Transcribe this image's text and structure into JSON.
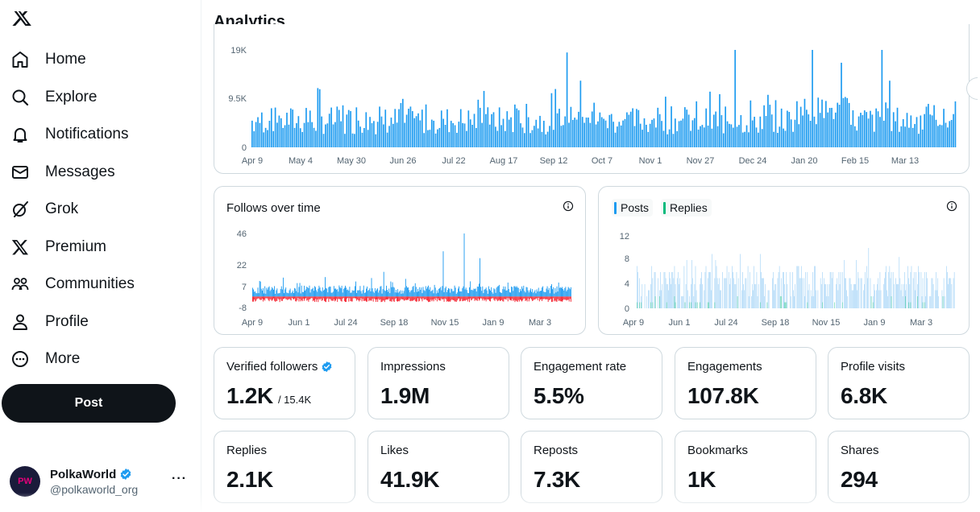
{
  "colors": {
    "accent": "#1d9bf0",
    "negative": "#f4212e",
    "replies": "#00ba7c",
    "posts_light": "#9cd0f6"
  },
  "sidebar": {
    "items": [
      {
        "label": "Home",
        "icon": "home-icon"
      },
      {
        "label": "Explore",
        "icon": "search-icon"
      },
      {
        "label": "Notifications",
        "icon": "bell-icon"
      },
      {
        "label": "Messages",
        "icon": "mail-icon"
      },
      {
        "label": "Grok",
        "icon": "grok-icon"
      },
      {
        "label": "Premium",
        "icon": "x-icon"
      },
      {
        "label": "Communities",
        "icon": "communities-icon"
      },
      {
        "label": "Profile",
        "icon": "person-icon"
      },
      {
        "label": "More",
        "icon": "more-circle-icon"
      }
    ],
    "post_label": "Post",
    "account": {
      "name": "PolkaWorld",
      "handle": "@polkaworld_org",
      "avatar_text": "PW"
    }
  },
  "page": {
    "title": "Analytics"
  },
  "chart_data": [
    {
      "id": "impressions",
      "type": "bar",
      "title": "",
      "yticks": [
        "19K",
        "9.5K",
        "0"
      ],
      "ylim": [
        0,
        19000
      ],
      "x_labels": [
        "Apr 9",
        "May 4",
        "May 30",
        "Jun 26",
        "Jul 22",
        "Aug 17",
        "Sep 12",
        "Oct 7",
        "Nov 1",
        "Nov 27",
        "Dec 24",
        "Jan 20",
        "Feb 15",
        "Mar 13"
      ],
      "bar_count": 365,
      "values": [],
      "note": "daily impressions, mostly 3K–9K with spikes up to ~19K around Sep 22 and Jan"
    },
    {
      "id": "follows",
      "type": "bar",
      "title": "Follows over time",
      "yticks": [
        "46",
        "22",
        "7",
        "-8"
      ],
      "ylim": [
        -8,
        46
      ],
      "x_labels": [
        "Apr 9",
        "Jun 1",
        "Jul 24",
        "Sep 18",
        "Nov 15",
        "Jan 9",
        "Mar 3"
      ],
      "bar_count": 365,
      "values": [],
      "note": "daily follows (blue, positive) and unfollows (red, negative); peak ~46"
    },
    {
      "id": "posts_replies",
      "type": "bar",
      "title": "",
      "legend": [
        "Posts",
        "Replies"
      ],
      "yticks": [
        "12",
        "8",
        "4",
        "0"
      ],
      "ylim": [
        0,
        12
      ],
      "x_labels": [
        "Apr 9",
        "Jun 1",
        "Jul 24",
        "Sep 18",
        "Nov 15",
        "Jan 9",
        "Mar 3"
      ],
      "bar_count": 365,
      "values": [],
      "note": "daily posts mostly 2–6, up to ~10; small reply counts"
    }
  ],
  "metrics": [
    {
      "label": "Verified followers",
      "value": "1.2K",
      "sub": "/ 15.4K",
      "verified": true
    },
    {
      "label": "Impressions",
      "value": "1.9M"
    },
    {
      "label": "Engagement rate",
      "value": "5.5%"
    },
    {
      "label": "Engagements",
      "value": "107.8K"
    },
    {
      "label": "Profile visits",
      "value": "6.8K"
    },
    {
      "label": "Replies",
      "value": "2.1K"
    },
    {
      "label": "Likes",
      "value": "41.9K"
    },
    {
      "label": "Reposts",
      "value": "7.3K"
    },
    {
      "label": "Bookmarks",
      "value": "1K"
    },
    {
      "label": "Shares",
      "value": "294"
    }
  ]
}
